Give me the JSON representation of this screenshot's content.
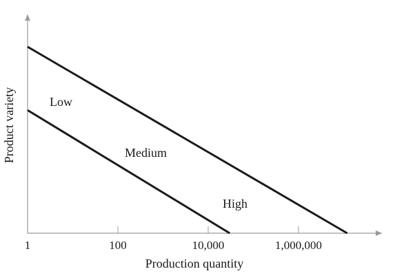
{
  "chart_data": {
    "type": "line",
    "x_scale": "log",
    "xlabel": "Production quantity",
    "ylabel": "Product variety",
    "x_ticks": [
      {
        "value": 1,
        "label": "1"
      },
      {
        "value": 100,
        "label": "100"
      },
      {
        "value": 10000,
        "label": "10,000"
      },
      {
        "value": 1000000,
        "label": "1,000,000"
      }
    ],
    "y_ticks": [],
    "grid": false,
    "series": [
      {
        "x": [
          1,
          30000
        ],
        "y": [
          0.66,
          0
        ]
      },
      {
        "x": [
          1,
          12000000
        ],
        "y": [
          1.0,
          0
        ]
      }
    ],
    "regions": [
      {
        "label": "Low"
      },
      {
        "label": "Medium"
      },
      {
        "label": "High"
      }
    ]
  }
}
